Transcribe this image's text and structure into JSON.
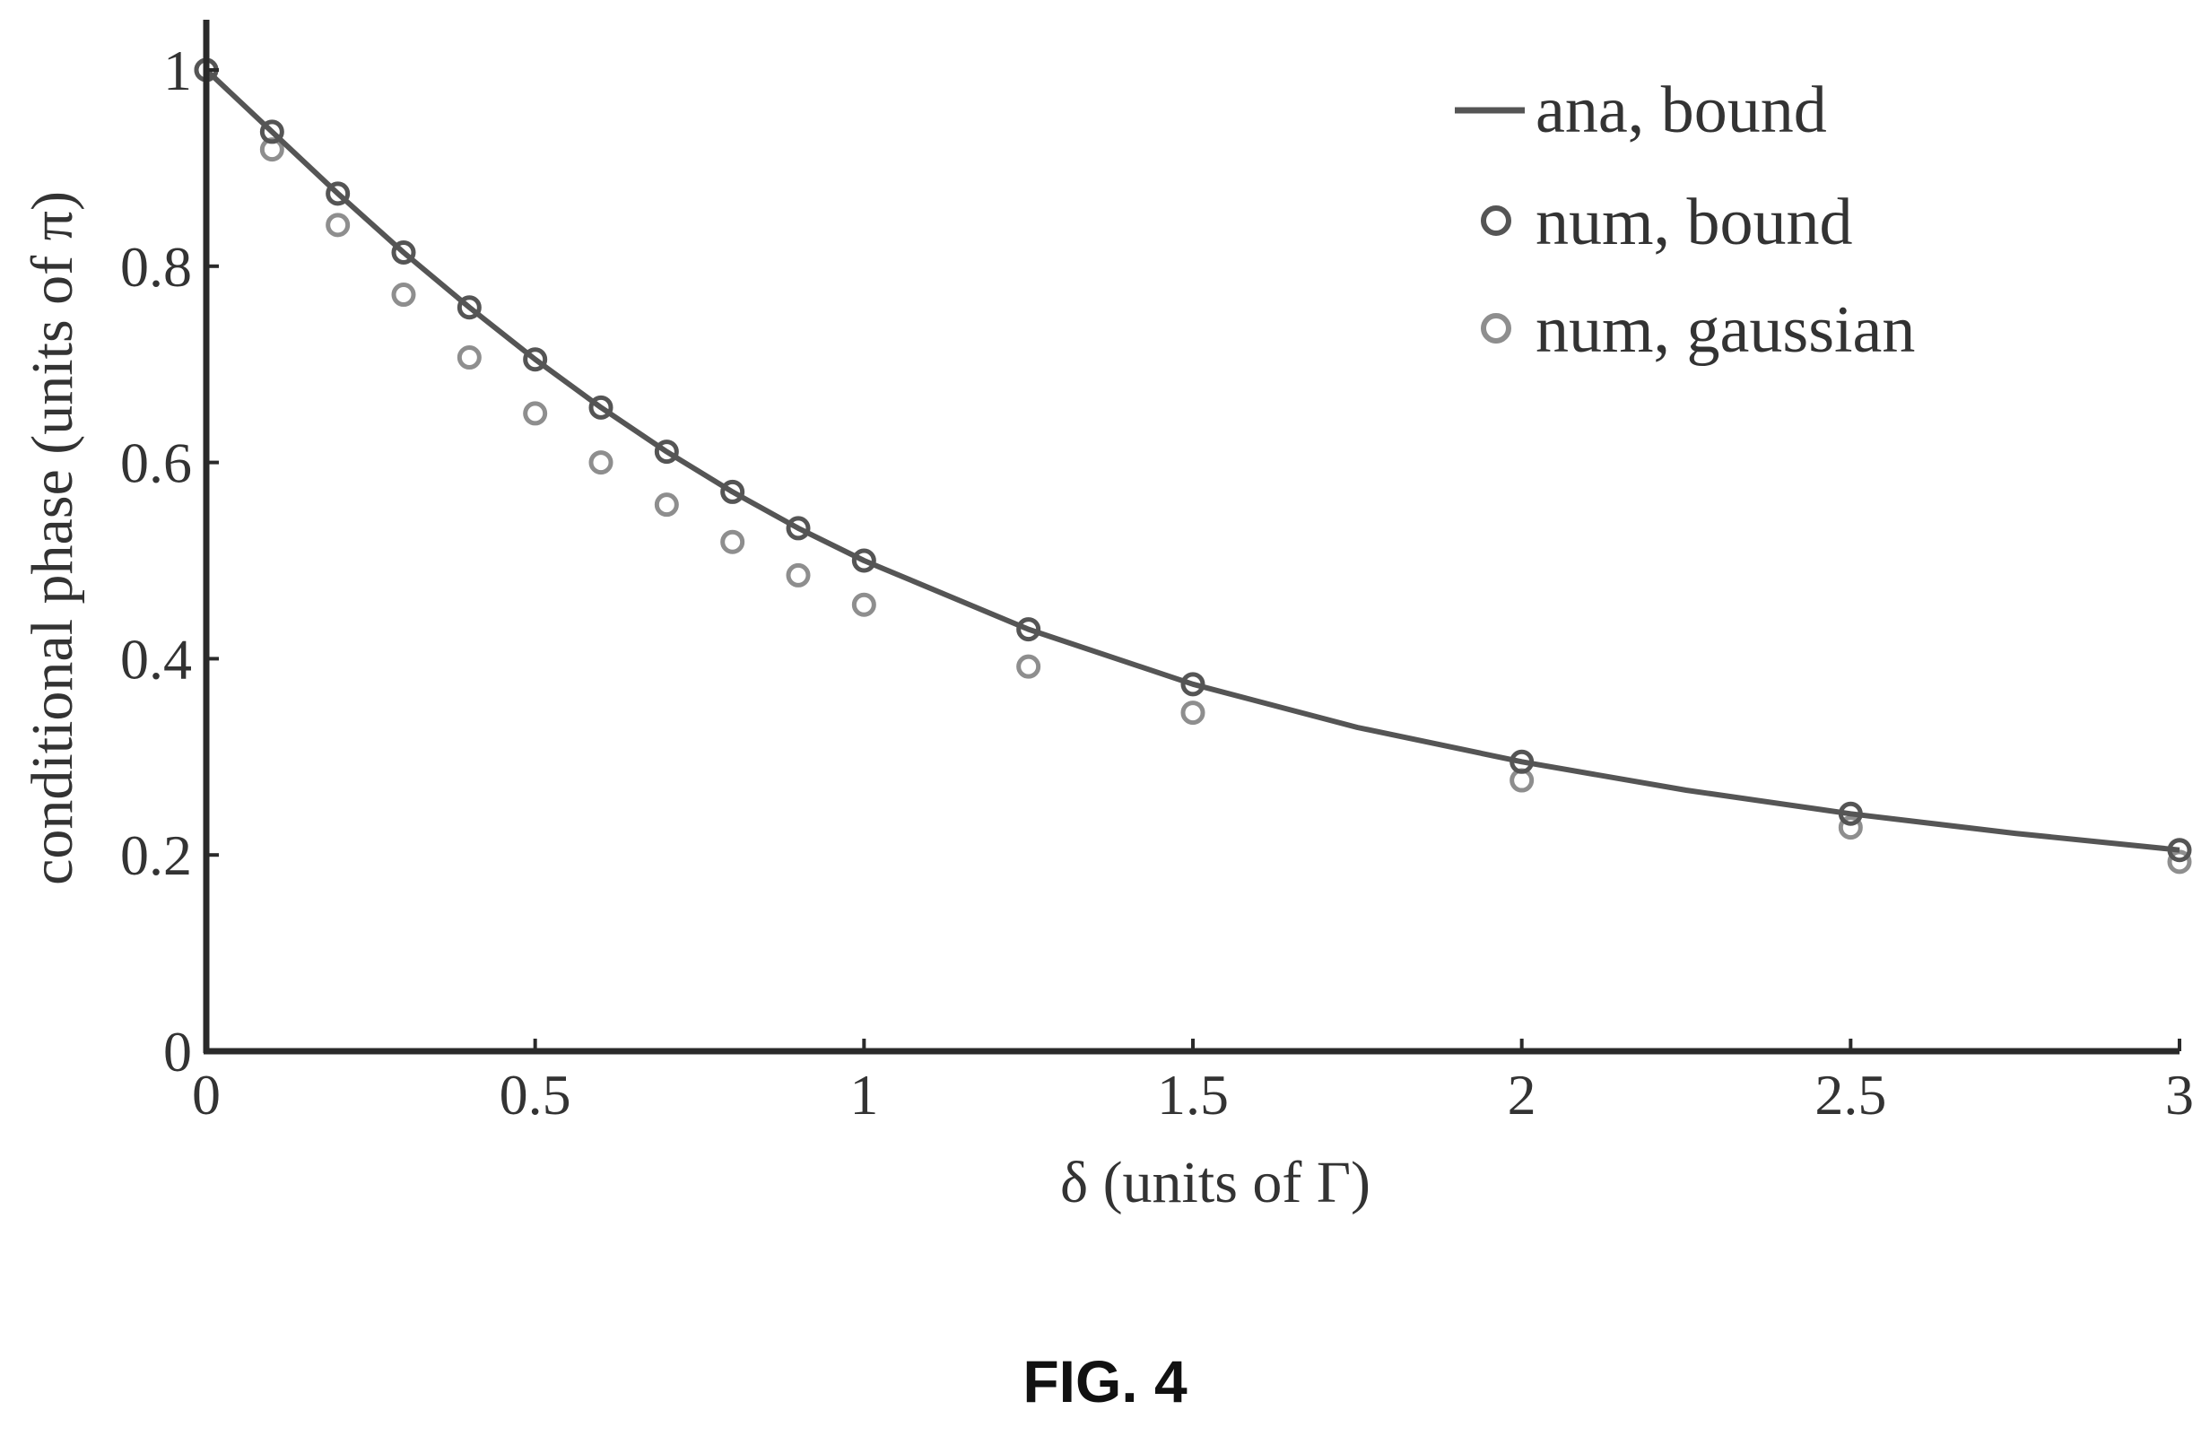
{
  "colors": {
    "axis": "#2a2a2a",
    "line": "#555555",
    "num_bound": "#555555",
    "num_gaussian": "#8e8e8e",
    "text": "#333333"
  },
  "figure": {
    "caption": "FIG. 4"
  },
  "chart_data": {
    "type": "line",
    "title": "",
    "xlabel": "δ (units of Γ)",
    "ylabel": "conditional phase (units of π)",
    "xlim": [
      0,
      3
    ],
    "ylim": [
      0,
      1
    ],
    "grid": false,
    "legend_position": "top-right",
    "x_ticks": [
      {
        "value": 0,
        "label": "0"
      },
      {
        "value": 0.5,
        "label": "0.5"
      },
      {
        "value": 1,
        "label": "1"
      },
      {
        "value": 1.5,
        "label": "1.5"
      },
      {
        "value": 2,
        "label": "2"
      },
      {
        "value": 2.5,
        "label": "2.5"
      },
      {
        "value": 3,
        "label": "3"
      }
    ],
    "y_ticks": [
      {
        "value": 0,
        "label": "0"
      },
      {
        "value": 0.2,
        "label": "0.2"
      },
      {
        "value": 0.4,
        "label": "0.4"
      },
      {
        "value": 0.6,
        "label": "0.6"
      },
      {
        "value": 0.8,
        "label": "0.8"
      },
      {
        "value": 1,
        "label": "1"
      }
    ],
    "series": [
      {
        "name": "ana, bound",
        "style": "line",
        "x": [
          0,
          0.1,
          0.2,
          0.3,
          0.4,
          0.5,
          0.6,
          0.7,
          0.8,
          0.9,
          1.0,
          1.25,
          1.5,
          1.75,
          2.0,
          2.25,
          2.5,
          2.75,
          3.0
        ],
        "y": [
          1.0,
          0.937,
          0.874,
          0.814,
          0.758,
          0.705,
          0.656,
          0.611,
          0.57,
          0.533,
          0.5,
          0.43,
          0.374,
          0.33,
          0.295,
          0.266,
          0.242,
          0.222,
          0.205
        ]
      },
      {
        "name": "num, bound",
        "style": "circle",
        "x": [
          0,
          0.1,
          0.2,
          0.3,
          0.4,
          0.5,
          0.6,
          0.7,
          0.8,
          0.9,
          1.0,
          1.25,
          1.5,
          2.0,
          2.5,
          3.0
        ],
        "y": [
          1.0,
          0.937,
          0.874,
          0.814,
          0.758,
          0.705,
          0.656,
          0.611,
          0.57,
          0.533,
          0.5,
          0.43,
          0.374,
          0.295,
          0.242,
          0.205
        ]
      },
      {
        "name": "num, gaussian",
        "style": "circle",
        "x": [
          0,
          0.1,
          0.2,
          0.3,
          0.4,
          0.5,
          0.6,
          0.7,
          0.8,
          0.9,
          1.0,
          1.25,
          1.5,
          2.0,
          2.5,
          3.0
        ],
        "y": [
          1.0,
          0.919,
          0.842,
          0.771,
          0.707,
          0.65,
          0.6,
          0.557,
          0.519,
          0.485,
          0.455,
          0.392,
          0.345,
          0.276,
          0.228,
          0.193
        ]
      }
    ]
  }
}
